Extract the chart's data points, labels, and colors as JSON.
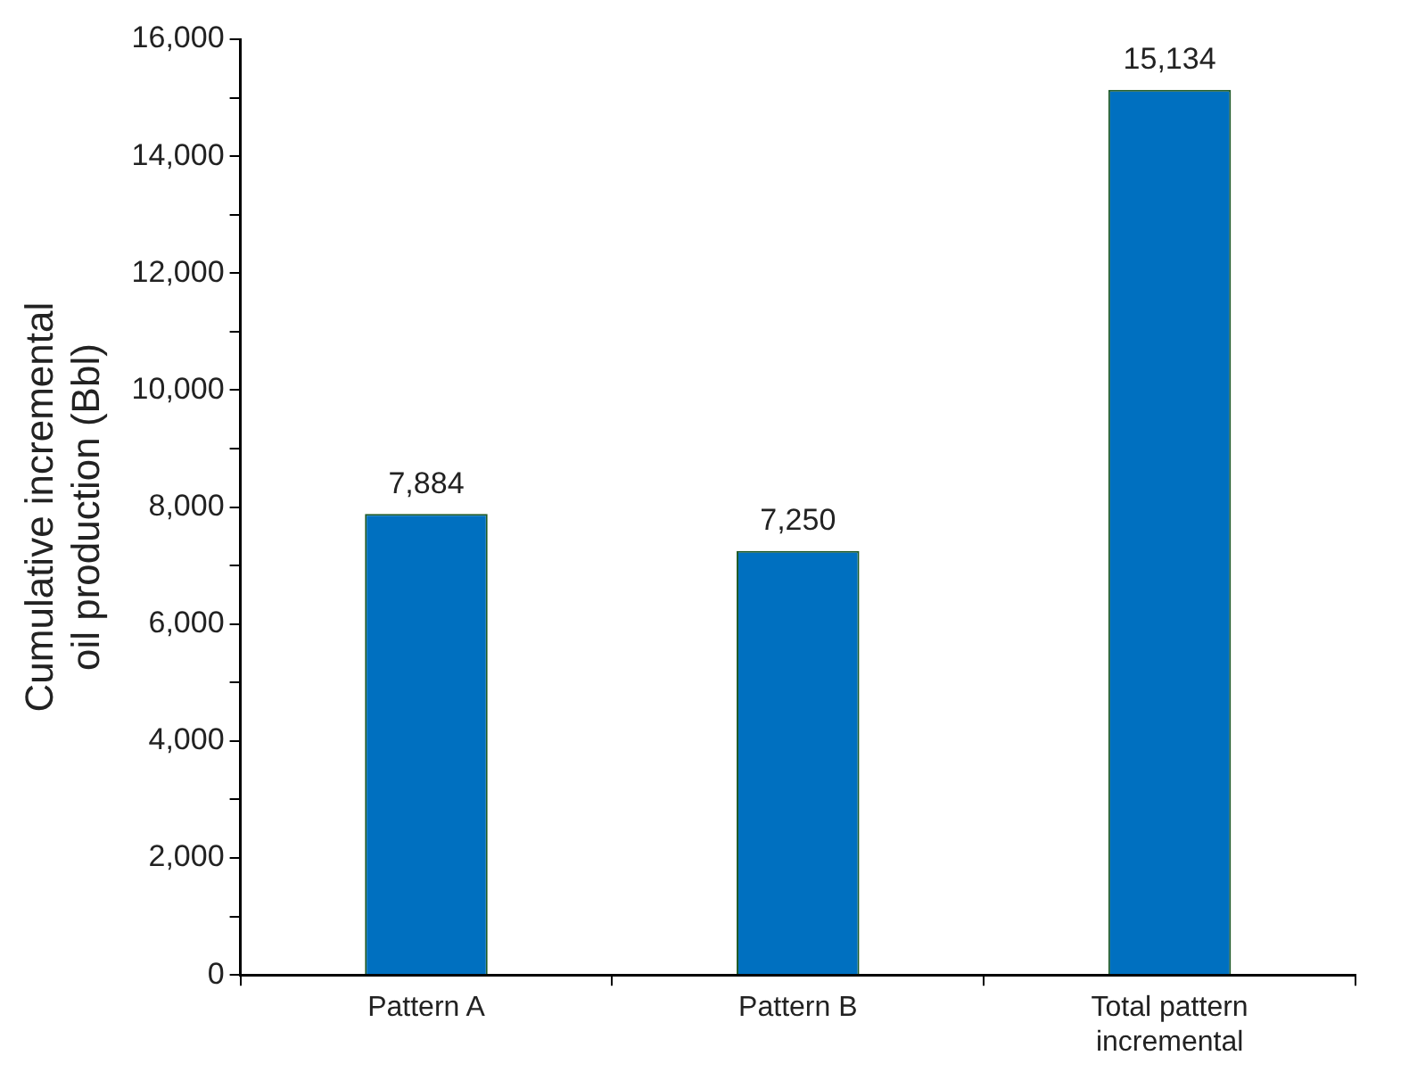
{
  "chart_data": {
    "type": "bar",
    "ylabel": "Cumulative incremental oil production (Bbl)",
    "categories": [
      "Pattern A",
      "Pattern B",
      "Total pattern incremental"
    ],
    "values": [
      7884,
      7250,
      15134
    ],
    "value_labels": [
      "7,884",
      "7,250",
      "15,134"
    ],
    "color": "#0070c0",
    "ylim": [
      0,
      16000
    ],
    "yticks": [
      0,
      {
        "value": 1000,
        "label": null
      },
      {
        "value": 2000,
        "label": "2,000"
      },
      {
        "value": 3000,
        "label": null
      },
      {
        "value": 4000,
        "label": "4,000"
      },
      {
        "value": 5000,
        "label": null
      },
      {
        "value": 6000,
        "label": "6,000"
      },
      {
        "value": 7000,
        "label": null
      },
      {
        "value": 8000,
        "label": "8,000"
      },
      {
        "value": 9000,
        "label": null
      },
      {
        "value": 10000,
        "label": "10,000"
      },
      {
        "value": 11000,
        "label": null
      },
      {
        "value": 12000,
        "label": "12,000"
      },
      {
        "value": 13000,
        "label": null
      },
      {
        "value": 14000,
        "label": "14,000"
      },
      {
        "value": 15000,
        "label": null
      },
      {
        "value": 16000,
        "label": "16,000"
      }
    ],
    "grid": false,
    "legend": false
  }
}
